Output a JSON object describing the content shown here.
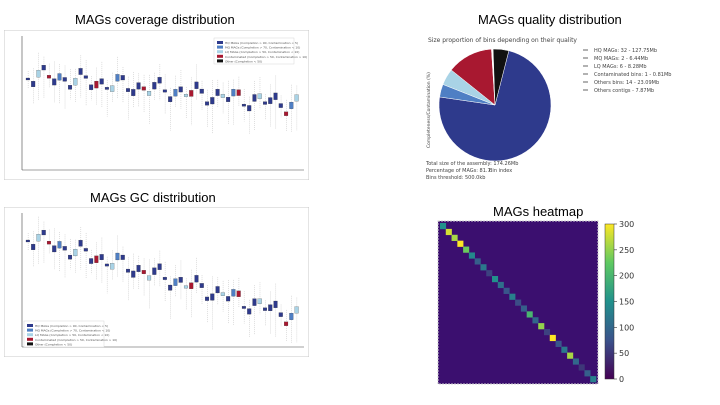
{
  "titles": {
    "coverage": "MAGs coverage distribution",
    "quality": "MAGs quality distribution",
    "gc": "MAGs GC distribution",
    "heatmap": "MAGs heatmap"
  },
  "colors": {
    "hq": "#2e3a8c",
    "mq": "#4f7fc4",
    "lq": "#a9d3e6",
    "contaminated": "#a81830",
    "others": "#111111",
    "heat_bg": "#3b0f6f",
    "heat_mid": "#2a788e",
    "heat_hi": "#fde725"
  },
  "coverage_legend": [
    "HQ MAGs (Completion > 90, Contamination < 5)",
    "MQ MAGs (Completion > 70, Contamination < 10)",
    "LQ MAGs (Completion > 50, Contamination < 10)",
    "Contaminated (Completion > 50, Contamination > 10)",
    "Other (Completion < 50)"
  ],
  "gc_legend": [
    "HQ MAGs (Completion > 90, Contamination < 5)",
    "MQ MAGs (Completion > 70, Contamination < 10)",
    "LQ MAGs (Completion > 50, Contamination < 10)",
    "Contaminated (Completion > 50, Contamination > 10)",
    "Other (Completion < 50)"
  ],
  "chart_data": [
    {
      "type": "pie",
      "title": "Size proportion of bins depending on their quality",
      "ylabel": "Completeness/Contamination (%)",
      "xlabel": "Bin index",
      "categories": [
        "HQ MAGs: 32 - 127.75Mb",
        "MQ MAGs: 2 - 6.44Mb",
        "LQ MAGs: 6 - 8.28Mb",
        "Contaminated bins: 1 - 0.81Mb",
        "Others bins: 14 - 23.09Mb",
        "Others contigs - 7.87Mb"
      ],
      "values": [
        127.75,
        6.44,
        8.28,
        0.81,
        23.09,
        7.87
      ],
      "notes": [
        "Total size of the assembly: 174.26Mb",
        "Percentage of MAGs: 81.7",
        "Bins threshold: 500.0kb"
      ]
    },
    {
      "type": "heatmap",
      "colorbar_ticks": [
        "300",
        "250",
        "200",
        "150",
        "100",
        "50",
        "0"
      ],
      "colorbar_range": [
        0,
        300
      ],
      "diagonal": [
        150,
        280,
        260,
        300,
        230,
        140,
        90,
        120,
        60,
        150,
        110,
        80,
        130,
        70,
        90,
        200,
        100,
        250,
        60,
        300,
        80,
        120,
        260,
        100,
        50,
        90,
        130
      ]
    }
  ]
}
